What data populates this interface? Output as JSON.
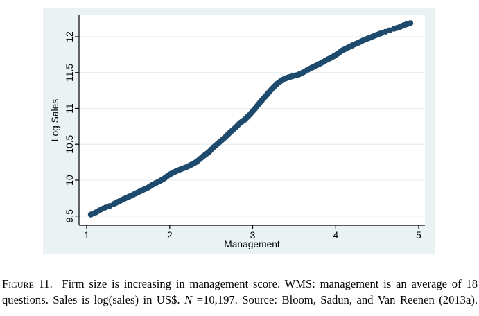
{
  "chart_data": {
    "type": "scatter",
    "title": "",
    "xlabel": "Management",
    "ylabel": "Log Sales",
    "x_ticks": [
      1,
      2,
      3,
      4,
      5
    ],
    "x_tick_labels": [
      "1",
      "2",
      "3",
      "4",
      "5"
    ],
    "y_ticks": [
      9.5,
      10,
      10.5,
      11,
      11.5,
      12
    ],
    "y_tick_labels": [
      "9.5",
      "10",
      "10.5",
      "11",
      "11.5",
      "12"
    ],
    "xlim": [
      0.91,
      5.07
    ],
    "ylim": [
      9.37,
      12.3
    ],
    "grid": "horizontal-only",
    "legend": "none",
    "colors": {
      "point": "#1d4a6d",
      "figure_background": "#eaf2f3",
      "plot_background": "#ffffff",
      "gridline": "#e2ecee",
      "axis": "#000000"
    },
    "points": [
      [
        1.05,
        9.52
      ],
      [
        1.11,
        9.55
      ],
      [
        1.17,
        9.59
      ],
      [
        1.23,
        9.62
      ],
      [
        1.28,
        9.64
      ],
      [
        1.33,
        9.67
      ],
      [
        1.4,
        9.71
      ],
      [
        1.47,
        9.75
      ],
      [
        1.53,
        9.78
      ],
      [
        1.6,
        9.82
      ],
      [
        1.67,
        9.86
      ],
      [
        1.73,
        9.89
      ],
      [
        1.8,
        9.94
      ],
      [
        1.87,
        9.98
      ],
      [
        1.93,
        10.02
      ],
      [
        2.0,
        10.08
      ],
      [
        2.07,
        10.12
      ],
      [
        2.13,
        10.15
      ],
      [
        2.2,
        10.18
      ],
      [
        2.27,
        10.22
      ],
      [
        2.33,
        10.26
      ],
      [
        2.4,
        10.33
      ],
      [
        2.47,
        10.39
      ],
      [
        2.53,
        10.46
      ],
      [
        2.6,
        10.53
      ],
      [
        2.67,
        10.6
      ],
      [
        2.73,
        10.67
      ],
      [
        2.8,
        10.74
      ],
      [
        2.85,
        10.8
      ],
      [
        2.9,
        10.84
      ],
      [
        2.97,
        10.92
      ],
      [
        3.03,
        11.0
      ],
      [
        3.1,
        11.1
      ],
      [
        3.17,
        11.19
      ],
      [
        3.23,
        11.27
      ],
      [
        3.3,
        11.35
      ],
      [
        3.36,
        11.4
      ],
      [
        3.42,
        11.43
      ],
      [
        3.48,
        11.45
      ],
      [
        3.55,
        11.47
      ],
      [
        3.62,
        11.51
      ],
      [
        3.68,
        11.55
      ],
      [
        3.75,
        11.59
      ],
      [
        3.82,
        11.63
      ],
      [
        3.88,
        11.67
      ],
      [
        3.95,
        11.71
      ],
      [
        4.02,
        11.76
      ],
      [
        4.08,
        11.81
      ],
      [
        4.15,
        11.85
      ],
      [
        4.22,
        11.89
      ],
      [
        4.28,
        11.92
      ],
      [
        4.35,
        11.96
      ],
      [
        4.42,
        11.99
      ],
      [
        4.48,
        12.02
      ],
      [
        4.55,
        12.05
      ],
      [
        4.6,
        12.07
      ],
      [
        4.65,
        12.09
      ],
      [
        4.7,
        12.11
      ],
      [
        4.76,
        12.13
      ],
      [
        4.82,
        12.16
      ],
      [
        4.87,
        12.18
      ],
      [
        4.9,
        12.19
      ]
    ]
  },
  "caption": {
    "line1": {
      "figure_label": "Figure 11.",
      "text": "  Firm size is increasing in management score. WMS: management is an average of 18"
    },
    "line2": {
      "before_n": "questions. Sales is log(sales) in US$. ",
      "n": "N",
      "after_n": " =10,197. Source: Bloom, Sadun, and Van Reenen (2013a)."
    }
  }
}
